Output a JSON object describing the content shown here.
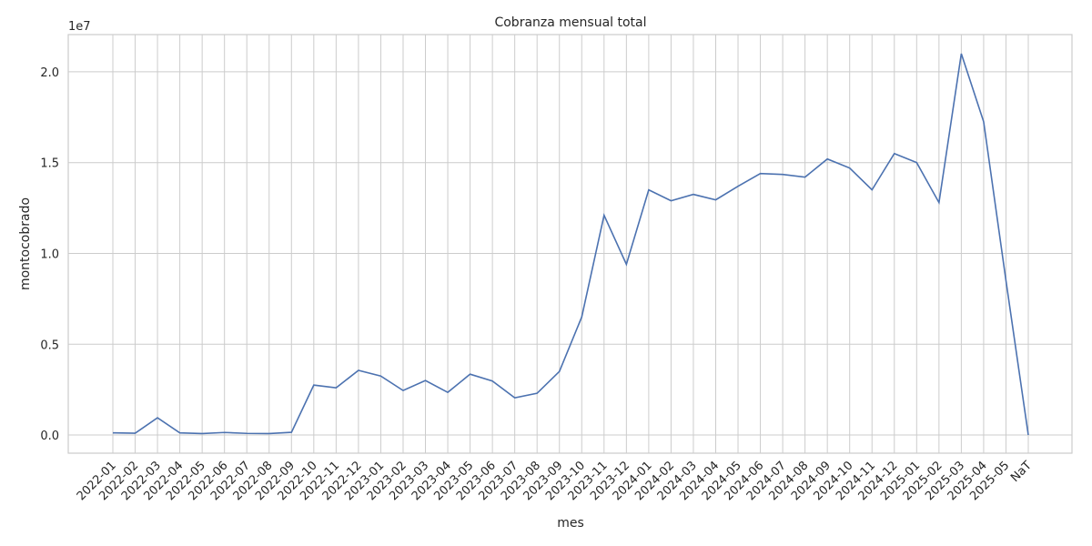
{
  "chart_data": {
    "type": "line",
    "title": "Cobranza mensual total",
    "x_label": "mes",
    "y_label": "montocobrado",
    "y_offset_label": "1e7",
    "categories": [
      "2022-01",
      "2022-02",
      "2022-03",
      "2022-04",
      "2022-05",
      "2022-06",
      "2022-07",
      "2022-08",
      "2022-09",
      "2022-10",
      "2022-11",
      "2022-12",
      "2023-01",
      "2023-02",
      "2023-03",
      "2023-04",
      "2023-05",
      "2023-06",
      "2023-07",
      "2023-08",
      "2023-09",
      "2023-10",
      "2023-11",
      "2023-12",
      "2024-01",
      "2024-02",
      "2024-03",
      "2024-04",
      "2024-05",
      "2024-06",
      "2024-07",
      "2024-08",
      "2024-09",
      "2024-10",
      "2024-11",
      "2024-12",
      "2025-01",
      "2025-02",
      "2025-03",
      "2025-04",
      "2025-05",
      "NaT"
    ],
    "series": [
      {
        "name": "montocobrado",
        "color": "#4c72b0",
        "values": [
          0.012,
          0.01,
          0.095,
          0.012,
          0.008,
          0.014,
          0.009,
          0.008,
          0.015,
          0.275,
          0.26,
          0.356,
          0.325,
          0.245,
          0.3,
          0.235,
          0.335,
          0.297,
          0.205,
          0.23,
          0.35,
          0.65,
          1.21,
          0.94,
          1.35,
          1.29,
          1.325,
          1.295,
          1.37,
          1.44,
          1.435,
          1.42,
          1.52,
          1.47,
          1.35,
          1.55,
          1.5,
          1.28,
          2.1,
          1.725,
          0.85,
          0.0
        ]
      }
    ],
    "ylim": [
      -0.1,
      2.205
    ],
    "yticks": [
      {
        "value": 0,
        "label": "0.0"
      },
      0.5,
      {
        "value": 1,
        "label": "1.0"
      },
      1.5,
      {
        "value": 2,
        "label": "2.0"
      }
    ],
    "grid": true
  }
}
